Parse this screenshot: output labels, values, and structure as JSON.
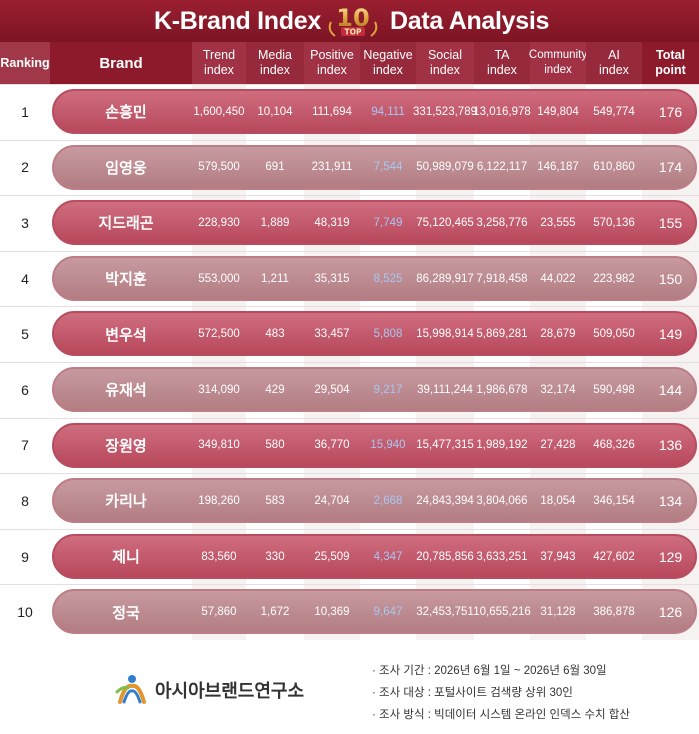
{
  "title": {
    "left": "K-Brand Index",
    "badge_number": "10",
    "badge_text": "TOP",
    "right": "Data Analysis"
  },
  "headers": {
    "ranking": "Ranking",
    "brand": "Brand",
    "trend": [
      "Trend",
      "index"
    ],
    "media": [
      "Media",
      "index"
    ],
    "positive": [
      "Positive",
      "index"
    ],
    "negative": [
      "Negative",
      "index"
    ],
    "social": [
      "Social",
      "index"
    ],
    "ta": [
      "TA",
      "index"
    ],
    "community": [
      "Community",
      "index"
    ],
    "ai": [
      "AI",
      "index"
    ],
    "total": [
      "Total",
      "point"
    ]
  },
  "rows": [
    {
      "rank": "1",
      "brand": "손흥민",
      "trend": "1,600,450",
      "media": "10,104",
      "positive": "111,694",
      "negative": "94,111",
      "social": "331,523,789",
      "ta": "13,016,978",
      "community": "149,804",
      "ai": "549,774",
      "total": "176"
    },
    {
      "rank": "2",
      "brand": "임영웅",
      "trend": "579,500",
      "media": "691",
      "positive": "231,911",
      "negative": "7,544",
      "social": "50,989,079",
      "ta": "6,122,117",
      "community": "146,187",
      "ai": "610,860",
      "total": "174"
    },
    {
      "rank": "3",
      "brand": "지드래곤",
      "trend": "228,930",
      "media": "1,889",
      "positive": "48,319",
      "negative": "7,749",
      "social": "75,120,465",
      "ta": "3,258,776",
      "community": "23,555",
      "ai": "570,136",
      "total": "155"
    },
    {
      "rank": "4",
      "brand": "박지훈",
      "trend": "553,000",
      "media": "1,211",
      "positive": "35,315",
      "negative": "8,525",
      "social": "86,289,917",
      "ta": "7,918,458",
      "community": "44,022",
      "ai": "223,982",
      "total": "150"
    },
    {
      "rank": "5",
      "brand": "변우석",
      "trend": "572,500",
      "media": "483",
      "positive": "33,457",
      "negative": "5,808",
      "social": "15,998,914",
      "ta": "5,869,281",
      "community": "28,679",
      "ai": "509,050",
      "total": "149"
    },
    {
      "rank": "6",
      "brand": "유재석",
      "trend": "314,090",
      "media": "429",
      "positive": "29,504",
      "negative": "9,217",
      "social": "39,111,244",
      "ta": "1,986,678",
      "community": "32,174",
      "ai": "590,498",
      "total": "144"
    },
    {
      "rank": "7",
      "brand": "장원영",
      "trend": "349,810",
      "media": "580",
      "positive": "36,770",
      "negative": "15,940",
      "social": "15,477,315",
      "ta": "1,989,192",
      "community": "27,428",
      "ai": "468,326",
      "total": "136"
    },
    {
      "rank": "8",
      "brand": "카리나",
      "trend": "198,260",
      "media": "583",
      "positive": "24,704",
      "negative": "2,668",
      "social": "24,843,394",
      "ta": "3,804,066",
      "community": "18,054",
      "ai": "346,154",
      "total": "134"
    },
    {
      "rank": "9",
      "brand": "제니",
      "trend": "83,560",
      "media": "330",
      "positive": "25,509",
      "negative": "4,347",
      "social": "20,785,856",
      "ta": "3,633,251",
      "community": "37,943",
      "ai": "427,602",
      "total": "129"
    },
    {
      "rank": "10",
      "brand": "정국",
      "trend": "57,860",
      "media": "1,672",
      "positive": "10,369",
      "negative": "9,647",
      "social": "32,453,751",
      "ta": "10,655,216",
      "community": "31,128",
      "ai": "386,878",
      "total": "126"
    }
  ],
  "footer": {
    "logo_text": "아시아브랜드연구소",
    "info": [
      "· 조사 기간 : 2026년 6월 1일 ~ 2026년 6월 30일",
      "· 조사 대상 : 포털사이트 검색량 상위 30인",
      "· 조사 방식 : 빅데이터 시스템 온라인 인덱스 수치 합산"
    ]
  },
  "colors": {
    "header": "#8d1a2b",
    "pill_dark": "#c05b6e",
    "pill_light": "#bf8e94",
    "negative_text": "#a7c7f2"
  },
  "chart_data": {
    "type": "table",
    "columns": [
      "Ranking",
      "Brand",
      "Trend index",
      "Media index",
      "Positive index",
      "Negative index",
      "Social index",
      "TA index",
      "Community index",
      "AI index",
      "Total point"
    ],
    "rows": [
      [
        1,
        "손흥민",
        1600450,
        10104,
        111694,
        94111,
        331523789,
        13016978,
        149804,
        549774,
        176
      ],
      [
        2,
        "임영웅",
        579500,
        691,
        231911,
        7544,
        50989079,
        6122117,
        146187,
        610860,
        174
      ],
      [
        3,
        "지드래곤",
        228930,
        1889,
        48319,
        7749,
        75120465,
        3258776,
        23555,
        570136,
        155
      ],
      [
        4,
        "박지훈",
        553000,
        1211,
        35315,
        8525,
        86289917,
        7918458,
        44022,
        223982,
        150
      ],
      [
        5,
        "변우석",
        572500,
        483,
        33457,
        5808,
        15998914,
        5869281,
        28679,
        509050,
        149
      ],
      [
        6,
        "유재석",
        314090,
        429,
        29504,
        9217,
        39111244,
        1986678,
        32174,
        590498,
        144
      ],
      [
        7,
        "장원영",
        349810,
        580,
        36770,
        15940,
        15477315,
        1989192,
        27428,
        468326,
        136
      ],
      [
        8,
        "카리나",
        198260,
        583,
        24704,
        2668,
        24843394,
        3804066,
        18054,
        346154,
        134
      ],
      [
        9,
        "제니",
        83560,
        330,
        25509,
        4347,
        20785856,
        3633251,
        37943,
        427602,
        129
      ],
      [
        10,
        "정국",
        57860,
        1672,
        10369,
        9647,
        32453751,
        10655216,
        31128,
        386878,
        126
      ]
    ],
    "title": "K-Brand Index TOP 10 Data Analysis"
  }
}
